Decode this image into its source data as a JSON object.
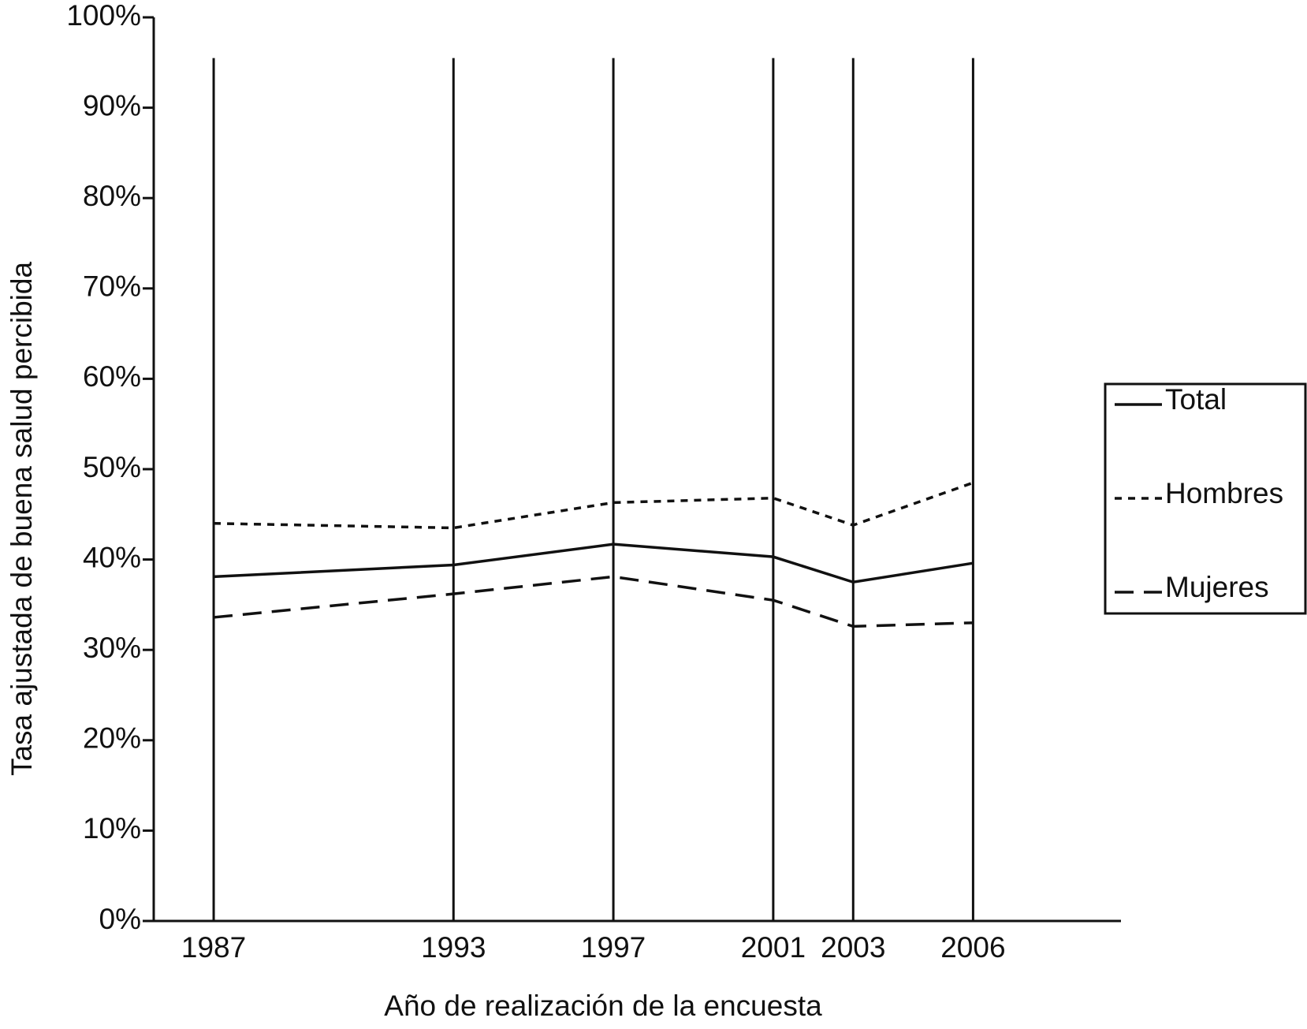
{
  "chart_data": {
    "type": "line",
    "y_label": "Tasa ajustada de buena salud percibida",
    "x_label": "Año de realización de la encuesta",
    "x": [
      1987,
      1993,
      1997,
      2001,
      2003,
      2006
    ],
    "series": [
      {
        "name": "Total",
        "color": "#111111",
        "dash": "solid",
        "values": [
          38.1,
          39.4,
          41.7,
          40.3,
          37.5,
          39.6
        ]
      },
      {
        "name": "Hombres",
        "color": "#111111",
        "dash": "short",
        "values": [
          44.0,
          43.5,
          46.3,
          46.8,
          43.8,
          48.5
        ]
      },
      {
        "name": "Mujeres",
        "color": "#111111",
        "dash": "long",
        "values": [
          33.6,
          36.2,
          38.1,
          35.5,
          32.6,
          33.0
        ]
      }
    ],
    "xlim": [
      1985.5,
      2009.7
    ],
    "xticks": [
      1987,
      1993,
      1997,
      2001,
      2003,
      2006
    ],
    "ylim": [
      0,
      100
    ],
    "yticks": [
      {
        "value": 0,
        "label": "0%"
      },
      {
        "value": 10,
        "label": "10%"
      },
      {
        "value": 20,
        "label": "20%"
      },
      {
        "value": 30,
        "label": "30%"
      },
      {
        "value": 40,
        "label": "40%"
      },
      {
        "value": 50,
        "label": "50%"
      },
      {
        "value": 60,
        "label": "60%"
      },
      {
        "value": 70,
        "label": "70%"
      },
      {
        "value": 80,
        "label": "80%"
      },
      {
        "value": 90,
        "label": "90%"
      },
      {
        "value": 100,
        "label": "100%"
      }
    ],
    "vertical_grid": true,
    "legend": "right"
  }
}
